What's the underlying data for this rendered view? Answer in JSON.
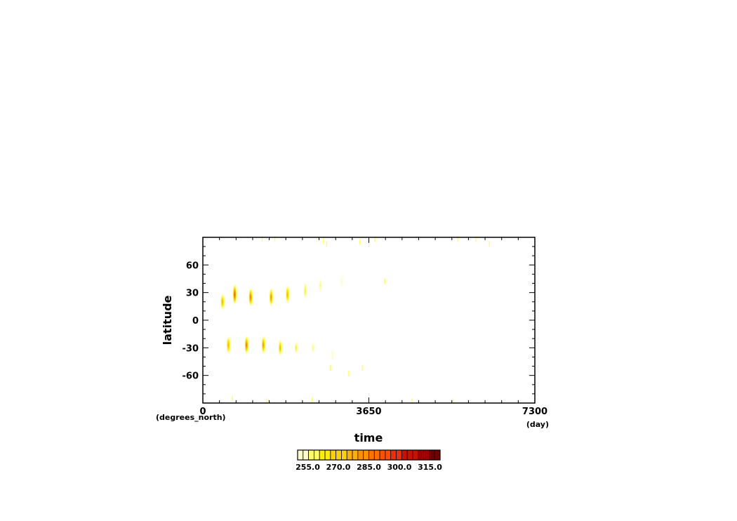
{
  "chart_data": {
    "type": "heatmap",
    "title": "",
    "xlabel": "time",
    "ylabel": "latitude",
    "x_units": "(day)",
    "y_units": "(degrees_north)",
    "xlim": [
      0,
      7300
    ],
    "ylim": [
      -90,
      90
    ],
    "x_ticks": [
      0,
      3650,
      7300
    ],
    "x_tick_labels": [
      "0",
      "3650",
      "7300"
    ],
    "y_ticks": [
      -60,
      -30,
      0,
      30,
      60
    ],
    "y_tick_labels": [
      "-60",
      "-30",
      "0",
      "30",
      "60"
    ],
    "grid": false,
    "colorbar": {
      "min": 250,
      "max": 320,
      "labels": [
        "255.0",
        "270.0",
        "285.0",
        "300.0",
        "315.0"
      ],
      "label_values": [
        255,
        270,
        285,
        300,
        315
      ],
      "colors": [
        "#ffffcc",
        "#ffff66",
        "#ffee00",
        "#ffd000",
        "#ffb000",
        "#ff9000",
        "#ff7000",
        "#ff5000",
        "#ee3000",
        "#cc1000",
        "#a00000",
        "#700000"
      ]
    },
    "blobs": [
      {
        "x": 430,
        "y": 20,
        "w": 90,
        "h": 18,
        "peak": 282
      },
      {
        "x": 700,
        "y": 28,
        "w": 90,
        "h": 22,
        "peak": 298
      },
      {
        "x": 1050,
        "y": 25,
        "w": 90,
        "h": 20,
        "peak": 290
      },
      {
        "x": 1500,
        "y": 25,
        "w": 90,
        "h": 20,
        "peak": 285
      },
      {
        "x": 1860,
        "y": 28,
        "w": 90,
        "h": 20,
        "peak": 280
      },
      {
        "x": 2250,
        "y": 32,
        "w": 60,
        "h": 18,
        "peak": 270
      },
      {
        "x": 2580,
        "y": 38,
        "w": 50,
        "h": 14,
        "peak": 262
      },
      {
        "x": 3050,
        "y": 42,
        "w": 40,
        "h": 10,
        "peak": 258
      },
      {
        "x": 560,
        "y": -27,
        "w": 90,
        "h": 20,
        "peak": 282
      },
      {
        "x": 960,
        "y": -27,
        "w": 90,
        "h": 20,
        "peak": 290
      },
      {
        "x": 1330,
        "y": -27,
        "w": 90,
        "h": 20,
        "peak": 285
      },
      {
        "x": 1700,
        "y": -30,
        "w": 80,
        "h": 18,
        "peak": 278
      },
      {
        "x": 2050,
        "y": -30,
        "w": 60,
        "h": 14,
        "peak": 268
      },
      {
        "x": 2420,
        "y": -30,
        "w": 50,
        "h": 12,
        "peak": 262
      },
      {
        "x": 2850,
        "y": -38,
        "w": 40,
        "h": 12,
        "peak": 257
      }
    ],
    "specks": [
      [
        1300,
        88
      ],
      [
        1580,
        88
      ],
      [
        2650,
        86
      ],
      [
        2720,
        83
      ],
      [
        3450,
        85
      ],
      [
        3780,
        88
      ],
      [
        5600,
        88
      ],
      [
        6000,
        88
      ],
      [
        6300,
        83
      ],
      [
        650,
        -85
      ],
      [
        1400,
        -88
      ],
      [
        2400,
        -87
      ],
      [
        3200,
        -58
      ],
      [
        3500,
        -52
      ],
      [
        4600,
        -88
      ],
      [
        5500,
        -88
      ],
      [
        2800,
        -52
      ],
      [
        4000,
        42
      ]
    ]
  }
}
